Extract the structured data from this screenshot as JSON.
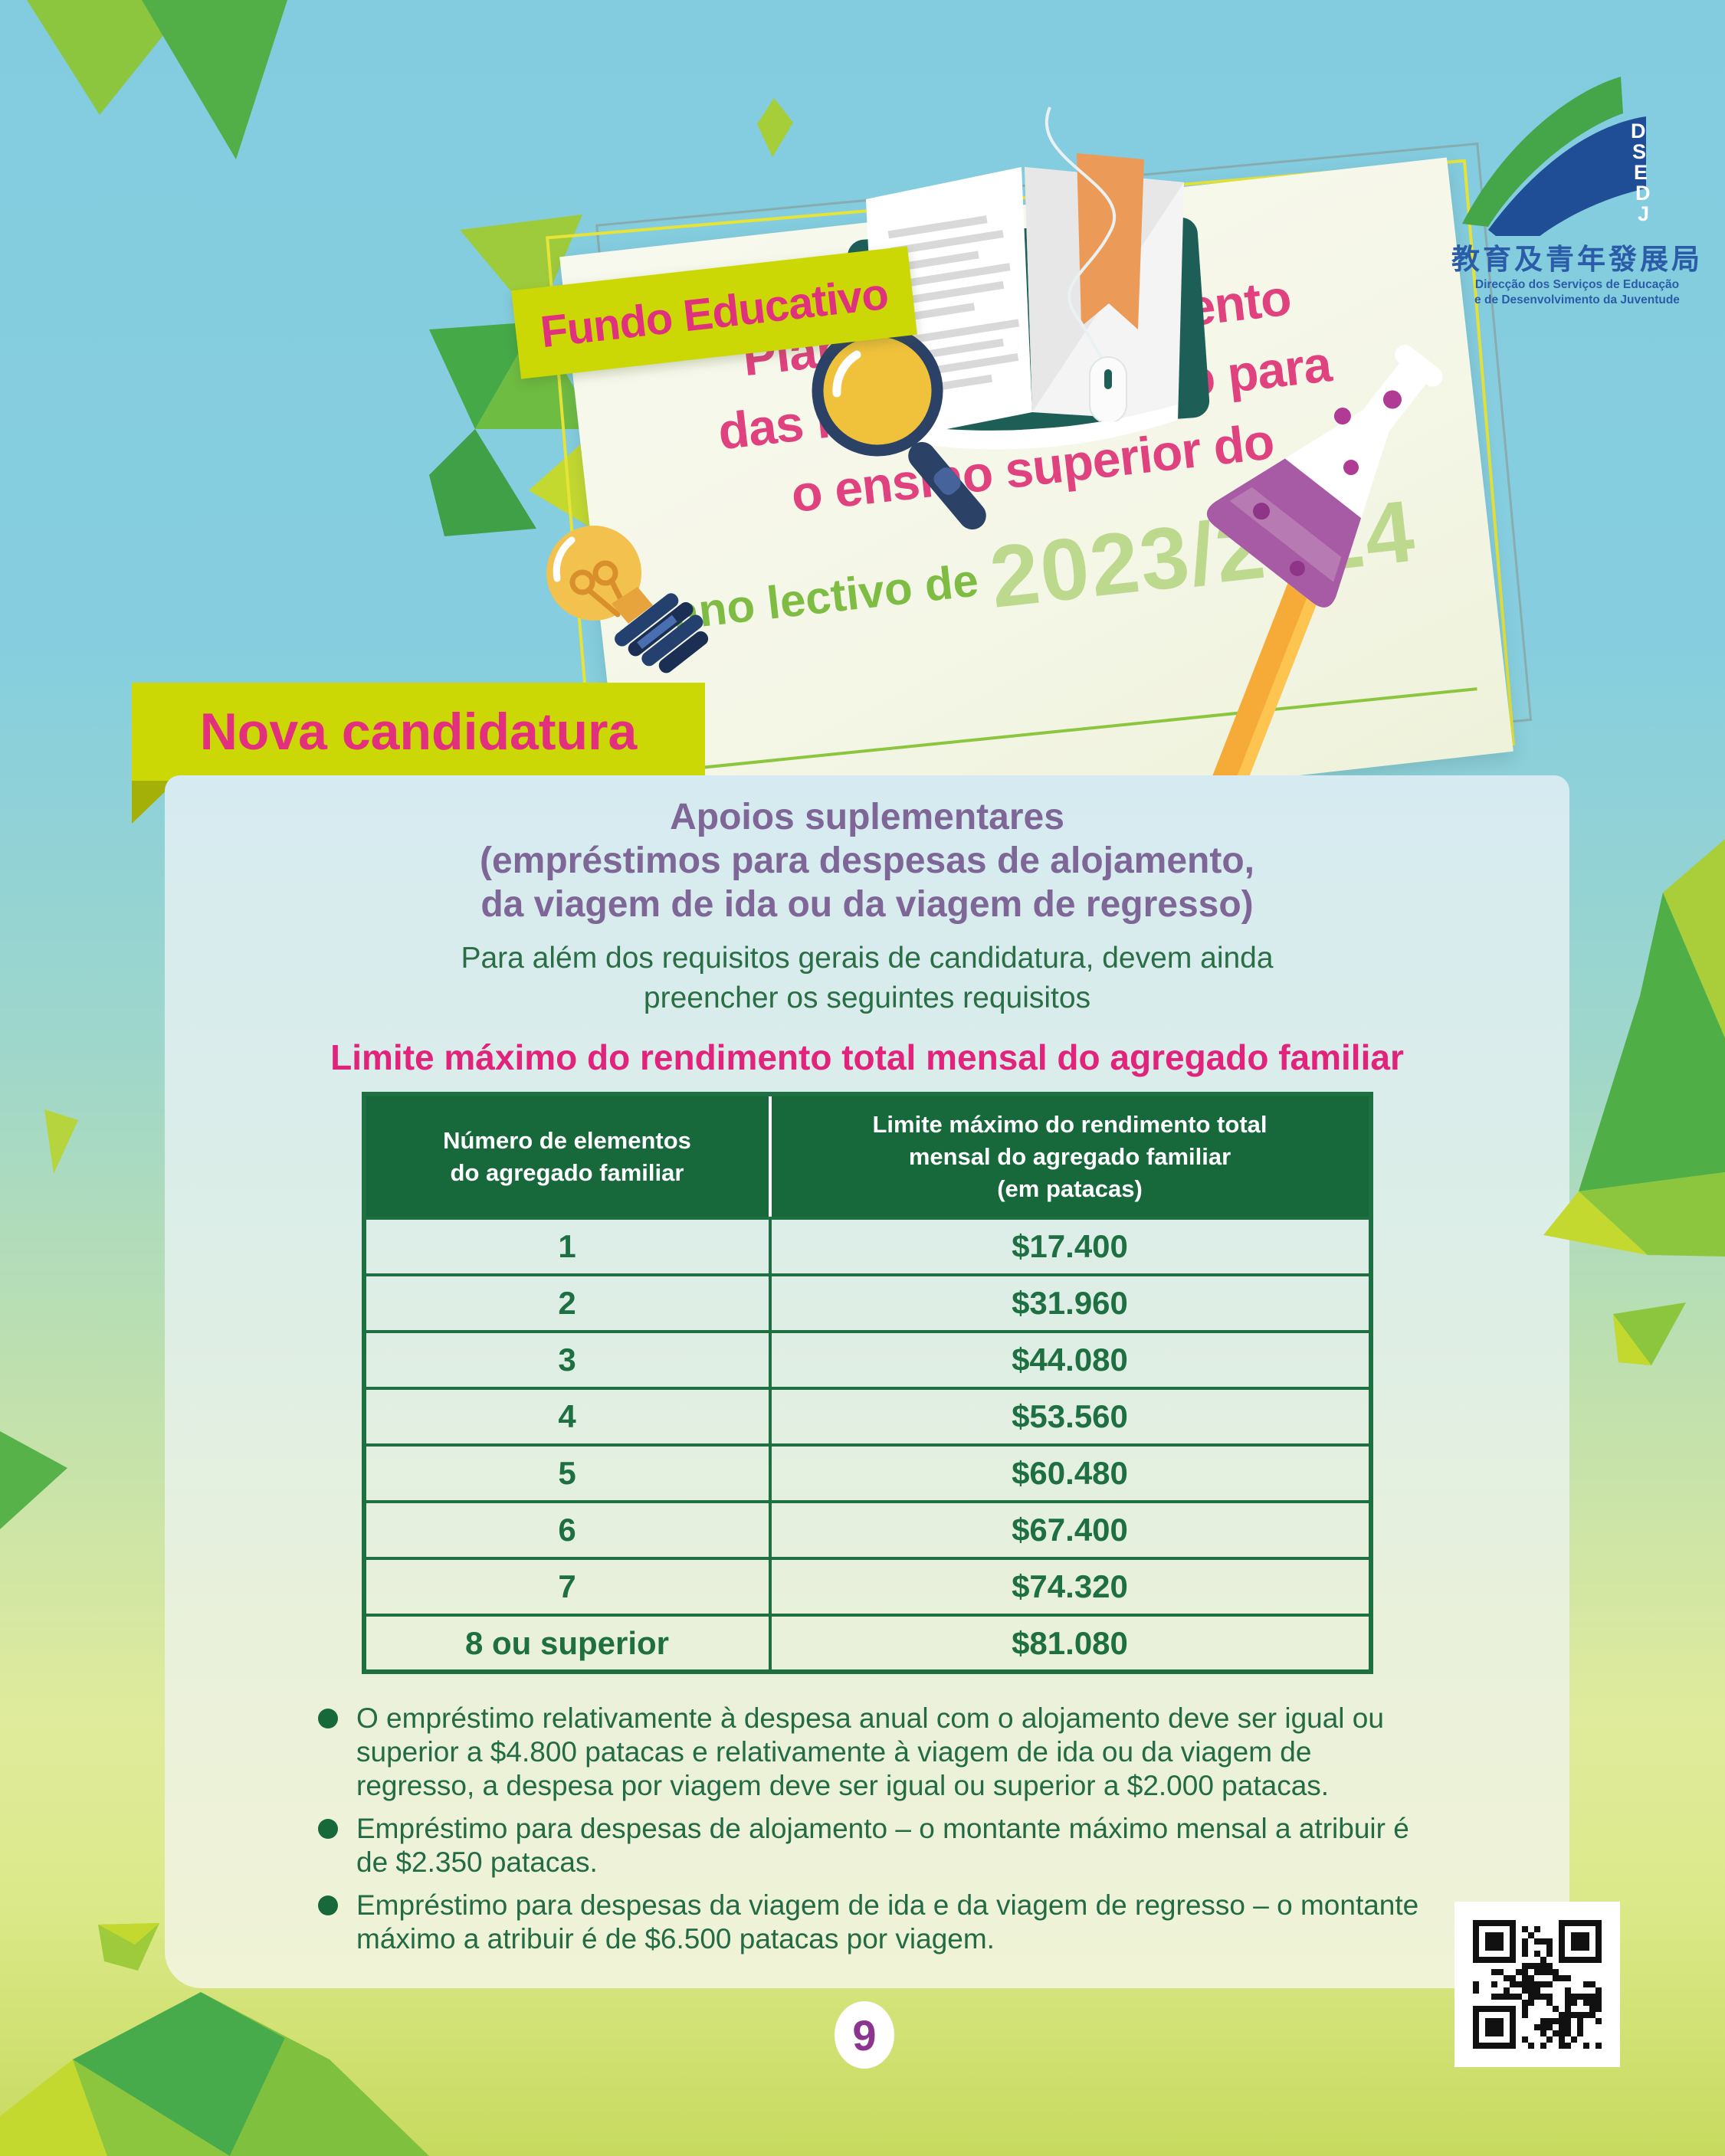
{
  "header": {
    "badge": "Fundo Educativo",
    "title_lines": [
      "Plano de financiamento",
      "das bolsas de estudo para",
      "o ensino superior do"
    ],
    "year_prefix": "ano lectivo de ",
    "year": "2023/2024",
    "logo": {
      "acronym": "DSEDJ",
      "name_cn": "教育及青年發展局",
      "name_pt_line1": "Direcção dos Serviços de Educação",
      "name_pt_line2": "e de Desenvolvimento da Juventude"
    }
  },
  "section": {
    "title": "Nova candidatura"
  },
  "panel": {
    "subtitle_lines": [
      "Apoios suplementares",
      "(empréstimos para despesas de alojamento,",
      "da viagem de ida ou da viagem de regresso)"
    ],
    "intro_lines": [
      "Para além dos requisitos gerais de candidatura, devem ainda",
      "preencher os seguintes requisitos"
    ],
    "table_title": "Limite máximo do rendimento total mensal do agregado familiar",
    "table": {
      "col1_header_lines": [
        "Número de elementos",
        "do agregado familiar"
      ],
      "col2_header_lines": [
        "Limite máximo do rendimento total",
        "mensal do agregado familiar",
        "(em patacas)"
      ],
      "rows": [
        {
          "members": "1",
          "limit": "$17.400"
        },
        {
          "members": "2",
          "limit": "$31.960"
        },
        {
          "members": "3",
          "limit": "$44.080"
        },
        {
          "members": "4",
          "limit": "$53.560"
        },
        {
          "members": "5",
          "limit": "$60.480"
        },
        {
          "members": "6",
          "limit": "$67.400"
        },
        {
          "members": "7",
          "limit": "$74.320"
        },
        {
          "members": "8 ou superior",
          "limit": "$81.080"
        }
      ]
    },
    "notes": [
      "O empréstimo relativamente à despesa anual com o alojamento deve ser igual ou superior a $4.800 patacas e relativamente à viagem de ida ou da viagem de regresso, a despesa por viagem deve ser igual ou superior a $2.000 patacas.",
      "Empréstimo para despesas de alojamento – o montante máximo mensal a atribuir é de $2.350 patacas.",
      "Empréstimo para despesas da viagem de ida e da viagem de regresso – o montante máximo a atribuir é de $6.500 patacas por viagem."
    ]
  },
  "footer": {
    "page_number": "9"
  },
  "colors": {
    "accent_pink": "#e2307e",
    "banner_yellow_green": "#cbd805",
    "table_green": "#17693c",
    "text_green": "#226b44",
    "subtitle_purple": "#7e6697",
    "year_light_green": "#bcd98e",
    "sky_blue": "#84cde0",
    "page_number_purple": "#8b3590"
  }
}
